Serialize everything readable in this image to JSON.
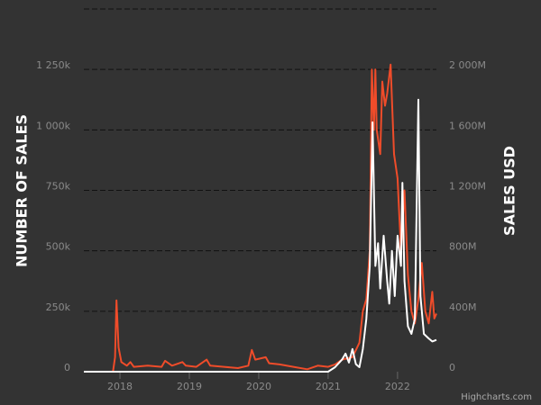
{
  "chart_data": {
    "type": "line",
    "y_axis_label": "NUMBER OF SALES",
    "y2_axis_label": "SALES USD",
    "credit": "Highcharts.com",
    "xlim": [
      2017.48,
      2022.56
    ],
    "xticks": [
      2018,
      2019,
      2020,
      2021,
      2022
    ],
    "ylim": [
      0,
      1500000
    ],
    "yticks": [
      0,
      {
        "value": 250000,
        "label": "250k"
      },
      {
        "value": 500000,
        "label": "500k"
      },
      {
        "value": 750000,
        "label": "750k"
      },
      {
        "value": 1000000,
        "label": "1 000k"
      },
      {
        "value": 1250000,
        "label": "1 250k"
      }
    ],
    "y2lim": [
      0,
      2400000000
    ],
    "y2ticks": [
      0,
      {
        "value": 400000000,
        "label": "400M"
      },
      {
        "value": 800000000,
        "label": "800M"
      },
      {
        "value": 1200000000,
        "label": "1 200M"
      },
      {
        "value": 1600000000,
        "label": "1 600M"
      },
      {
        "value": 2000000000,
        "label": "2 000M"
      }
    ],
    "grid": true,
    "series": [
      {
        "color": "#ef4c2a",
        "axis": "y",
        "x": [
          2017.9,
          2017.93,
          2017.95,
          2017.98,
          2018.02,
          2018.1,
          2018.15,
          2018.2,
          2018.4,
          2018.6,
          2018.65,
          2018.75,
          2018.9,
          2018.95,
          2019.1,
          2019.25,
          2019.3,
          2019.5,
          2019.7,
          2019.85,
          2019.9,
          2019.95,
          2020.1,
          2020.15,
          2020.3,
          2020.5,
          2020.7,
          2020.85,
          2021.0,
          2021.1,
          2021.2,
          2021.35,
          2021.45,
          2021.5,
          2021.55,
          2021.6,
          2021.63,
          2021.66,
          2021.68,
          2021.7,
          2021.75,
          2021.78,
          2021.82,
          2021.85,
          2021.9,
          2021.95,
          2022.0,
          2022.05,
          2022.1,
          2022.15,
          2022.2,
          2022.25,
          2022.3,
          2022.35,
          2022.4,
          2022.45,
          2022.5,
          2022.53,
          2022.56
        ],
        "values": [
          0,
          60000,
          295000,
          100000,
          40000,
          25000,
          40000,
          20000,
          25000,
          20000,
          45000,
          25000,
          40000,
          25000,
          20000,
          50000,
          25000,
          20000,
          15000,
          25000,
          90000,
          50000,
          60000,
          35000,
          30000,
          20000,
          10000,
          25000,
          20000,
          30000,
          50000,
          60000,
          120000,
          250000,
          300000,
          500000,
          1250000,
          1000000,
          1250000,
          1000000,
          900000,
          1200000,
          1100000,
          1150000,
          1270000,
          900000,
          800000,
          500000,
          750000,
          400000,
          250000,
          200000,
          300000,
          450000,
          250000,
          200000,
          330000,
          220000,
          240000
        ]
      },
      {
        "color": "#ffffff",
        "axis": "y2",
        "x": [
          2017.48,
          2021.0,
          2021.1,
          2021.2,
          2021.25,
          2021.3,
          2021.35,
          2021.4,
          2021.45,
          2021.5,
          2021.55,
          2021.6,
          2021.64,
          2021.68,
          2021.72,
          2021.75,
          2021.8,
          2021.85,
          2021.88,
          2021.92,
          2021.96,
          2022.0,
          2022.05,
          2022.07,
          2022.1,
          2022.15,
          2022.2,
          2022.25,
          2022.3,
          2022.33,
          2022.38,
          2022.45,
          2022.5,
          2022.56
        ],
        "values": [
          0,
          0,
          30000000,
          80000000,
          120000000,
          60000000,
          150000000,
          50000000,
          30000000,
          150000000,
          350000000,
          700000000,
          1650000000,
          700000000,
          850000000,
          550000000,
          900000000,
          600000000,
          450000000,
          800000000,
          500000000,
          900000000,
          700000000,
          1250000000,
          600000000,
          300000000,
          250000000,
          350000000,
          1800000000,
          500000000,
          250000000,
          220000000,
          200000000,
          210000000
        ]
      }
    ]
  }
}
